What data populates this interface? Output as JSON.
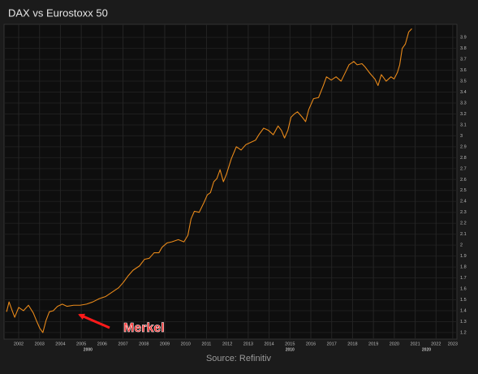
{
  "chart_data": {
    "type": "line",
    "title": "DAX vs Eurostoxx 50",
    "source": "Source: Refinitiv",
    "annotation": "Merkel",
    "grid": true,
    "xlim": [
      2001.8,
      2023.5
    ],
    "ylim": [
      1.14,
      4.02
    ],
    "yticks": [
      1.2,
      1.3,
      1.4,
      1.5,
      1.6,
      1.7,
      1.8,
      1.9,
      2,
      2.1,
      2.2,
      2.3,
      2.4,
      2.5,
      2.6,
      2.7,
      2.8,
      2.9,
      3,
      3.1,
      3.2,
      3.3,
      3.4,
      3.5,
      3.6,
      3.7,
      3.8,
      3.9
    ],
    "xticks": [
      {
        "value": 2002.5,
        "label": "2002"
      },
      {
        "value": 2003.5,
        "label": "2003"
      },
      {
        "value": 2004.5,
        "label": "2004"
      },
      {
        "value": 2005.5,
        "label": "2005"
      },
      {
        "value": 2006.5,
        "label": "2006"
      },
      {
        "value": 2007.5,
        "label": "2007"
      },
      {
        "value": 2008.5,
        "label": "2008"
      },
      {
        "value": 2009.5,
        "label": "2009"
      },
      {
        "value": 2010.5,
        "label": "2010"
      },
      {
        "value": 2011.5,
        "label": "2011"
      },
      {
        "value": 2012.5,
        "label": "2012"
      },
      {
        "value": 2013.5,
        "label": "2013"
      },
      {
        "value": 2014.5,
        "label": "2014"
      },
      {
        "value": 2015.5,
        "label": "2015"
      },
      {
        "value": 2016.5,
        "label": "2016"
      },
      {
        "value": 2017.5,
        "label": "2017"
      },
      {
        "value": 2018.5,
        "label": "2018"
      },
      {
        "value": 2019.5,
        "label": "2019"
      },
      {
        "value": 2020.5,
        "label": "2020"
      },
      {
        "value": 2021.5,
        "label": "2021"
      },
      {
        "value": 2022.5,
        "label": "2022"
      },
      {
        "value": 2023.3,
        "label": "2023"
      }
    ],
    "x_group_ticks": [
      {
        "value": 2005.82,
        "label": "2000"
      },
      {
        "value": 2015.5,
        "label": "2010"
      },
      {
        "value": 2022.04,
        "label": "2020"
      }
    ],
    "series": [
      {
        "color": "#e8891a",
        "x": [
          2001.92,
          2002.04,
          2002.19,
          2002.31,
          2002.5,
          2002.73,
          2002.97,
          2003.2,
          2003.35,
          2003.51,
          2003.66,
          2003.81,
          2003.97,
          2004.16,
          2004.36,
          2004.59,
          2004.82,
          2005.13,
          2005.44,
          2005.75,
          2006.05,
          2006.36,
          2006.67,
          2006.98,
          2007.29,
          2007.52,
          2007.75,
          2007.98,
          2008.29,
          2008.53,
          2008.76,
          2008.99,
          2009.22,
          2009.37,
          2009.61,
          2009.84,
          2010.15,
          2010.42,
          2010.61,
          2010.76,
          2010.92,
          2011.15,
          2011.38,
          2011.54,
          2011.69,
          2011.85,
          2012.0,
          2012.15,
          2012.31,
          2012.46,
          2012.69,
          2012.93,
          2013.16,
          2013.39,
          2013.62,
          2013.85,
          2014.01,
          2014.24,
          2014.47,
          2014.7,
          2014.93,
          2015.09,
          2015.24,
          2015.4,
          2015.55,
          2015.71,
          2015.86,
          2016.09,
          2016.25,
          2016.4,
          2016.63,
          2016.87,
          2017.1,
          2017.25,
          2017.48,
          2017.71,
          2017.95,
          2018.18,
          2018.33,
          2018.56,
          2018.72,
          2018.95,
          2019.1,
          2019.34,
          2019.57,
          2019.72,
          2019.88,
          2020.11,
          2020.34,
          2020.49,
          2020.65,
          2020.76,
          2020.88,
          2021.03,
          2021.19,
          2021.34
        ],
        "values": [
          1.39,
          1.48,
          1.4,
          1.34,
          1.43,
          1.4,
          1.45,
          1.38,
          1.31,
          1.24,
          1.2,
          1.31,
          1.39,
          1.4,
          1.44,
          1.46,
          1.44,
          1.45,
          1.45,
          1.46,
          1.48,
          1.51,
          1.53,
          1.57,
          1.61,
          1.66,
          1.72,
          1.77,
          1.81,
          1.87,
          1.88,
          1.93,
          1.93,
          1.98,
          2.02,
          2.03,
          2.05,
          2.03,
          2.09,
          2.24,
          2.31,
          2.3,
          2.39,
          2.46,
          2.48,
          2.58,
          2.61,
          2.69,
          2.58,
          2.65,
          2.79,
          2.9,
          2.87,
          2.92,
          2.94,
          2.96,
          3.01,
          3.07,
          3.05,
          3.01,
          3.09,
          3.05,
          2.98,
          3.05,
          3.17,
          3.2,
          3.22,
          3.17,
          3.13,
          3.24,
          3.34,
          3.35,
          3.46,
          3.54,
          3.51,
          3.54,
          3.5,
          3.59,
          3.65,
          3.68,
          3.65,
          3.66,
          3.63,
          3.57,
          3.52,
          3.46,
          3.56,
          3.5,
          3.54,
          3.52,
          3.58,
          3.65,
          3.8,
          3.84,
          3.95,
          3.98
        ]
      }
    ]
  }
}
